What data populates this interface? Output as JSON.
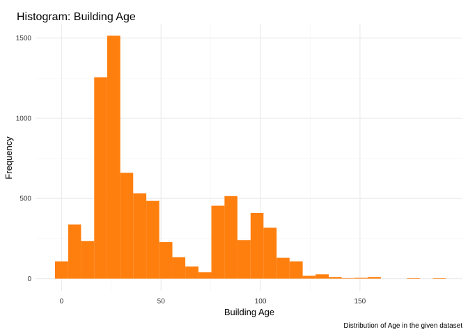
{
  "chart_data": {
    "type": "bar",
    "subtype": "histogram",
    "title": "Histogram: Building Age",
    "xlabel": "Building Age",
    "ylabel": "Frequency",
    "caption": "Distribution of Age in the given dataset",
    "bar_color": "#FF7F0E",
    "bin_width": 6.55,
    "bins": [
      {
        "x_start": -3.3,
        "x_end": 3.3,
        "count": 108
      },
      {
        "x_start": 3.3,
        "x_end": 9.8,
        "count": 338
      },
      {
        "x_start": 9.8,
        "x_end": 16.4,
        "count": 235
      },
      {
        "x_start": 16.4,
        "x_end": 22.9,
        "count": 1255
      },
      {
        "x_start": 22.9,
        "x_end": 29.5,
        "count": 1515
      },
      {
        "x_start": 29.5,
        "x_end": 36.0,
        "count": 660
      },
      {
        "x_start": 36.0,
        "x_end": 42.6,
        "count": 532
      },
      {
        "x_start": 42.6,
        "x_end": 49.1,
        "count": 485
      },
      {
        "x_start": 49.1,
        "x_end": 55.7,
        "count": 228
      },
      {
        "x_start": 55.7,
        "x_end": 62.2,
        "count": 134
      },
      {
        "x_start": 62.2,
        "x_end": 68.8,
        "count": 76
      },
      {
        "x_start": 68.8,
        "x_end": 75.3,
        "count": 40
      },
      {
        "x_start": 75.3,
        "x_end": 81.9,
        "count": 455
      },
      {
        "x_start": 81.9,
        "x_end": 88.4,
        "count": 515
      },
      {
        "x_start": 88.4,
        "x_end": 95.0,
        "count": 240
      },
      {
        "x_start": 95.0,
        "x_end": 101.5,
        "count": 410
      },
      {
        "x_start": 101.5,
        "x_end": 108.1,
        "count": 318
      },
      {
        "x_start": 108.1,
        "x_end": 114.6,
        "count": 130
      },
      {
        "x_start": 114.6,
        "x_end": 121.2,
        "count": 108
      },
      {
        "x_start": 121.2,
        "x_end": 127.7,
        "count": 18
      },
      {
        "x_start": 127.7,
        "x_end": 134.3,
        "count": 27
      },
      {
        "x_start": 134.3,
        "x_end": 140.8,
        "count": 10
      },
      {
        "x_start": 140.8,
        "x_end": 147.4,
        "count": 3
      },
      {
        "x_start": 147.4,
        "x_end": 153.9,
        "count": 6
      },
      {
        "x_start": 153.9,
        "x_end": 160.5,
        "count": 10
      },
      {
        "x_start": 160.5,
        "x_end": 167.0,
        "count": 0
      },
      {
        "x_start": 167.0,
        "x_end": 173.6,
        "count": 0
      },
      {
        "x_start": 173.6,
        "x_end": 180.1,
        "count": 2
      },
      {
        "x_start": 180.1,
        "x_end": 186.7,
        "count": 0
      },
      {
        "x_start": 186.7,
        "x_end": 193.2,
        "count": 2
      }
    ],
    "xlim": [
      -13.1,
      201.5
    ],
    "ylim": [
      -76,
      1590
    ],
    "x_ticks": [
      0,
      50,
      100,
      150
    ],
    "y_ticks": [
      0,
      500,
      1000,
      1500
    ],
    "x_tick_labels": [
      "0",
      "50",
      "100",
      "150"
    ],
    "y_tick_labels": [
      "0",
      "500",
      "1000",
      "1500"
    ],
    "grid": true,
    "legend": "none"
  }
}
